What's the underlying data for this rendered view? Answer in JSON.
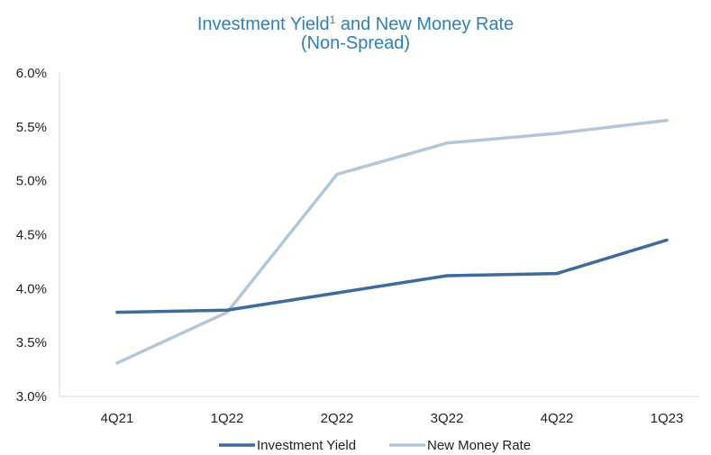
{
  "chart_data": {
    "type": "line",
    "title_main": "Investment Yield",
    "title_sup": "1",
    "title_rest": " and New Money Rate",
    "subtitle": "(Non-Spread)",
    "categories": [
      "4Q21",
      "1Q22",
      "2Q22",
      "3Q22",
      "4Q22",
      "1Q23"
    ],
    "y_ticks": [
      "3.0%",
      "3.5%",
      "4.0%",
      "4.5%",
      "5.0%",
      "5.5%",
      "6.0%"
    ],
    "ylim": [
      3.0,
      6.0
    ],
    "grid": false,
    "legend_position": "bottom-center",
    "series": [
      {
        "name": "Investment Yield",
        "color": "#3f6b9b",
        "values": [
          3.78,
          3.8,
          3.96,
          4.12,
          4.14,
          4.45
        ]
      },
      {
        "name": "New Money Rate",
        "color": "#b3c7da",
        "values": [
          3.31,
          3.78,
          5.06,
          5.35,
          5.44,
          5.56
        ]
      }
    ]
  }
}
